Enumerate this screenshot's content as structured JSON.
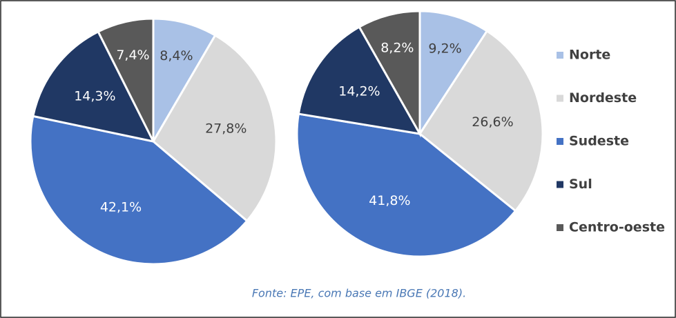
{
  "chart_data": [
    {
      "type": "pie",
      "categories": [
        "Norte",
        "Nordeste",
        "Sudeste",
        "Sul",
        "Centro-oeste"
      ],
      "values": [
        8.4,
        27.8,
        42.1,
        14.3,
        7.4
      ],
      "value_labels": [
        "8,4%",
        "27,8%",
        "42,1%",
        "14,3%",
        "7,4%"
      ],
      "colors": [
        "#a9c1e6",
        "#d9d9d9",
        "#4472c4",
        "#203864",
        "#595959"
      ]
    },
    {
      "type": "pie",
      "categories": [
        "Norte",
        "Nordeste",
        "Sudeste",
        "Sul",
        "Centro-oeste"
      ],
      "values": [
        9.2,
        26.6,
        41.8,
        14.2,
        8.2
      ],
      "value_labels": [
        "9,2%",
        "26,6%",
        "41,8%",
        "14,2%",
        "8,2%"
      ],
      "colors": [
        "#a9c1e6",
        "#d9d9d9",
        "#4472c4",
        "#203864",
        "#595959"
      ]
    }
  ],
  "source": "Fonte: EPE, com base em IBGE (2018)."
}
